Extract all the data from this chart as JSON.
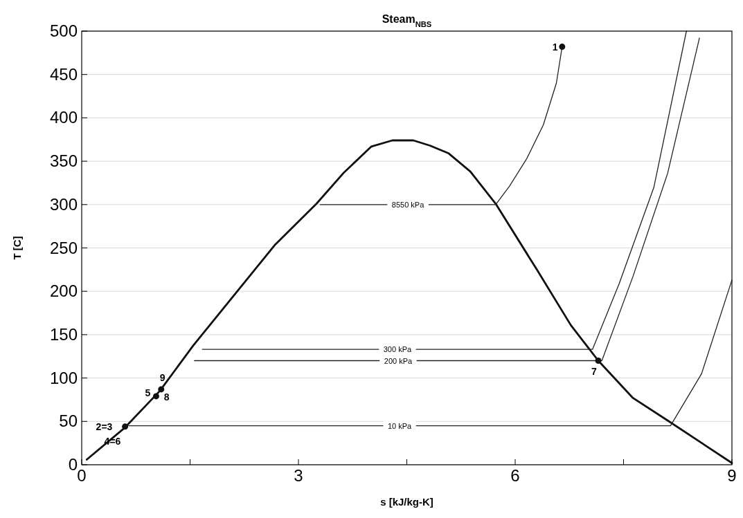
{
  "chart_data": {
    "type": "line",
    "title": "Steam$_{NBS}$",
    "xlabel": "s [kJ/kg-K]",
    "ylabel": "T [C]",
    "xlim": [
      0,
      9
    ],
    "xticks": [
      0,
      {
        "value": 1.5,
        "label": null
      },
      3,
      {
        "value": 4.5,
        "label": null
      },
      6,
      {
        "value": 7.5,
        "label": null
      },
      9
    ],
    "ylim": [
      0,
      500
    ],
    "yticks": [
      0,
      50,
      100,
      150,
      200,
      250,
      300,
      350,
      400,
      450,
      500
    ],
    "grid": "y",
    "marker": "none",
    "line_style": "solid",
    "series": [
      {
        "color": "#111111",
        "x": [
          0.07,
          0.6,
          1.08,
          1.54,
          2.68,
          3.25,
          3.63,
          4.01,
          4.3,
          4.59,
          4.82,
          5.08,
          5.38,
          5.73,
          6.3,
          6.77,
          7.15,
          7.63,
          8.11,
          9.0
        ],
        "values": [
          6,
          43,
          85,
          137,
          254,
          301,
          337,
          367,
          374,
          374,
          368,
          359,
          338,
          301,
          225,
          161,
          120,
          77,
          51,
          2
        ]
      },
      {
        "name": "8550 kPa",
        "color": "#222222",
        "x": [
          3.3,
          5.73,
          5.92,
          6.16,
          6.39,
          6.57,
          6.65
        ],
        "values": [
          300,
          300,
          321,
          353,
          392,
          440,
          482
        ]
      },
      {
        "name": "300 kPa",
        "color": "#222222",
        "x": [
          1.67,
          7.07,
          7.44,
          7.92,
          8.37
        ],
        "values": [
          133,
          133,
          209,
          320,
          500
        ]
      },
      {
        "name": "200 kPa",
        "color": "#222222",
        "x": [
          1.56,
          7.2,
          7.63,
          8.11,
          8.55
        ],
        "values": [
          120,
          120,
          217,
          336,
          492
        ]
      },
      {
        "name": "10 kPa",
        "color": "#222222",
        "x": [
          0.65,
          8.15,
          8.58,
          9.0
        ],
        "values": [
          45,
          45,
          105,
          213
        ]
      },
      {
        "type": "scatter",
        "marker": "circle",
        "color": "#111111",
        "x": [
          6.65,
          7.15,
          0.6,
          1.03,
          1.1
        ],
        "values": [
          482,
          120,
          44,
          79,
          87
        ]
      }
    ],
    "annotations": [
      {
        "text": "1",
        "x": 6.65,
        "y": 482
      },
      {
        "text": "7",
        "x": 7.15,
        "y": 120
      },
      {
        "text": "2=3",
        "x": 0.6,
        "y": 44
      },
      {
        "text": "4=6",
        "x": 0.6,
        "y": 44
      },
      {
        "text": "5",
        "x": 1.03,
        "y": 79
      },
      {
        "text": "9",
        "x": 1.1,
        "y": 87
      },
      {
        "text": "8",
        "x": 1.1,
        "y": 87
      }
    ]
  }
}
